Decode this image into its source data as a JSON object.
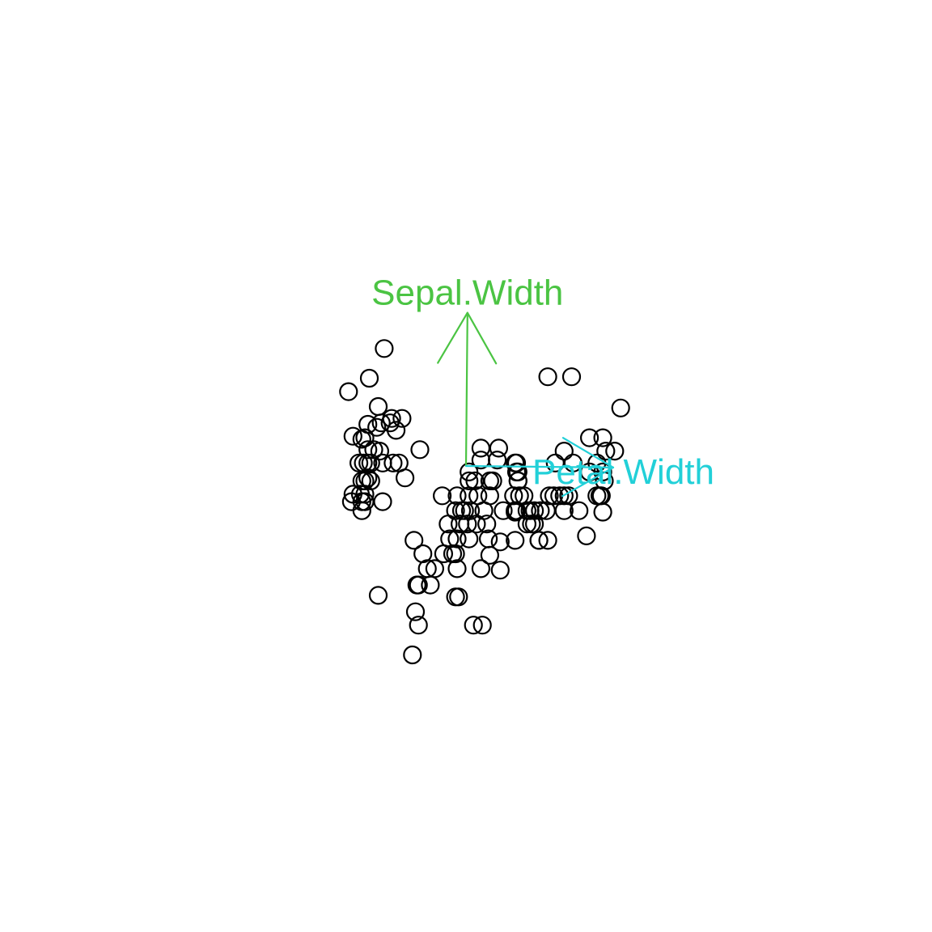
{
  "chart_data": {
    "type": "scatter",
    "title": "",
    "xlabel": "",
    "ylabel": "",
    "axes_visible": false,
    "grid": false,
    "marker": "open-circle",
    "marker_color": "#000000",
    "points": [
      [
        -5.5,
        7.9
      ],
      [
        -6.5,
        5.9
      ],
      [
        -7.9,
        5.0
      ],
      [
        -5.9,
        4.0
      ],
      [
        -5.0,
        3.2
      ],
      [
        -4.3,
        3.2
      ],
      [
        -6.6,
        2.8
      ],
      [
        -5.7,
        2.9
      ],
      [
        -5.1,
        2.9
      ],
      [
        -6.0,
        2.6
      ],
      [
        -4.7,
        2.4
      ],
      [
        -7.6,
        2.0
      ],
      [
        -7.0,
        1.8
      ],
      [
        -6.8,
        1.9
      ],
      [
        -6.6,
        1.1
      ],
      [
        -6.2,
        1.1
      ],
      [
        -5.8,
        1.0
      ],
      [
        -3.1,
        1.1
      ],
      [
        -7.2,
        0.2
      ],
      [
        -6.9,
        0.2
      ],
      [
        -6.6,
        0.2
      ],
      [
        -6.4,
        0.2
      ],
      [
        -5.6,
        0.2
      ],
      [
        -4.9,
        0.2
      ],
      [
        -4.5,
        0.2
      ],
      [
        -6.6,
        -0.8
      ],
      [
        -4.1,
        -0.8
      ],
      [
        -7.0,
        -1.0
      ],
      [
        -6.8,
        -1.0
      ],
      [
        -6.4,
        -1.0
      ],
      [
        -7.6,
        -1.9
      ],
      [
        -7.1,
        -1.9
      ],
      [
        -6.8,
        -1.9
      ],
      [
        -6.8,
        -2.4
      ],
      [
        -7.7,
        -2.4
      ],
      [
        -7.0,
        -2.4
      ],
      [
        -5.6,
        -2.4
      ],
      [
        -7.0,
        -3.0
      ],
      [
        -5.9,
        -8.7
      ],
      [
        1.0,
        1.2
      ],
      [
        2.2,
        1.2
      ],
      [
        1.0,
        0.4
      ],
      [
        2.1,
        0.4
      ],
      [
        0.2,
        -0.4
      ],
      [
        3.5,
        -0.4
      ],
      [
        0.2,
        -1.0
      ],
      [
        0.6,
        -1.0
      ],
      [
        1.6,
        -1.0
      ],
      [
        1.8,
        -1.0
      ],
      [
        3.5,
        -1.0
      ],
      [
        -1.6,
        -2.0
      ],
      [
        -0.6,
        -2.0
      ],
      [
        0.2,
        -2.0
      ],
      [
        0.8,
        -2.0
      ],
      [
        1.6,
        -2.0
      ],
      [
        3.2,
        -2.0
      ],
      [
        3.6,
        -2.0
      ],
      [
        3.9,
        -2.0
      ],
      [
        -0.7,
        -3.0
      ],
      [
        -0.3,
        -3.0
      ],
      [
        -0.1,
        -3.0
      ],
      [
        0.3,
        -3.0
      ],
      [
        1.2,
        -3.0
      ],
      [
        -1.2,
        -3.9
      ],
      [
        -0.4,
        -3.9
      ],
      [
        0.1,
        -3.9
      ],
      [
        0.7,
        -3.9
      ],
      [
        1.4,
        -3.9
      ],
      [
        -1.1,
        -4.9
      ],
      [
        -0.6,
        -4.9
      ],
      [
        0.2,
        -4.9
      ],
      [
        1.5,
        -4.9
      ],
      [
        -3.5,
        -5.0
      ],
      [
        -2.9,
        -5.9
      ],
      [
        -1.5,
        -5.9
      ],
      [
        -0.9,
        -5.9
      ],
      [
        -0.7,
        -5.9
      ],
      [
        -2.6,
        -6.9
      ],
      [
        -2.1,
        -6.9
      ],
      [
        -0.6,
        -6.9
      ],
      [
        1.0,
        -6.9
      ],
      [
        2.3,
        -7.0
      ],
      [
        -3.2,
        -8.0
      ],
      [
        -3.3,
        -8.0
      ],
      [
        -2.4,
        -8.0
      ],
      [
        -0.7,
        -8.8
      ],
      [
        -0.5,
        -8.8
      ],
      [
        -3.4,
        -9.8
      ],
      [
        -3.2,
        -10.7
      ],
      [
        0.5,
        -10.7
      ],
      [
        1.1,
        -10.7
      ],
      [
        -3.6,
        -12.7
      ],
      [
        5.5,
        6.0
      ],
      [
        7.1,
        6.0
      ],
      [
        10.4,
        3.9
      ],
      [
        8.3,
        1.9
      ],
      [
        9.2,
        1.9
      ],
      [
        6.6,
        1.0
      ],
      [
        10.0,
        1.0
      ],
      [
        9.4,
        1.0
      ],
      [
        3.3,
        0.2
      ],
      [
        3.4,
        0.2
      ],
      [
        6.0,
        0.2
      ],
      [
        7.2,
        0.2
      ],
      [
        8.8,
        0.2
      ],
      [
        3.4,
        -0.4
      ],
      [
        3.5,
        -1.0
      ],
      [
        8.3,
        -0.4
      ],
      [
        9.2,
        -0.4
      ],
      [
        9.3,
        -1.0
      ],
      [
        5.6,
        -2.0
      ],
      [
        5.9,
        -2.0
      ],
      [
        6.3,
        -2.0
      ],
      [
        6.6,
        -2.0
      ],
      [
        6.9,
        -2.0
      ],
      [
        8.8,
        -2.0
      ],
      [
        9.0,
        -2.0
      ],
      [
        9.1,
        -2.0
      ],
      [
        2.5,
        -3.0
      ],
      [
        3.4,
        -3.0
      ],
      [
        4.1,
        -3.0
      ],
      [
        4.6,
        -3.0
      ],
      [
        5.0,
        -3.0
      ],
      [
        5.4,
        -3.0
      ],
      [
        6.6,
        -3.0
      ],
      [
        7.6,
        -3.0
      ],
      [
        9.2,
        -3.1
      ],
      [
        4.1,
        -3.9
      ],
      [
        4.4,
        -3.9
      ],
      [
        4.6,
        -3.9
      ],
      [
        8.1,
        -4.7
      ],
      [
        2.3,
        -5.1
      ],
      [
        3.3,
        -5.0
      ],
      [
        4.9,
        -5.0
      ],
      [
        5.5,
        -5.0
      ],
      [
        4.9,
        -5.0
      ],
      [
        1.6,
        -6.0
      ],
      [
        3.3,
        -3.0
      ],
      [
        3.3,
        -3.1
      ],
      [
        4.3,
        -3.0
      ]
    ],
    "arrows": [
      {
        "label": "Sepal.Width",
        "dx": 0.1,
        "dy": 10.3,
        "color": "#4bc443"
      },
      {
        "label": "Petal.Width",
        "dx": 9.9,
        "dy": -0.1,
        "color": "#22d0d8"
      }
    ],
    "xlim": [
      -26,
      26
    ],
    "ylim": [
      -26,
      26
    ]
  }
}
